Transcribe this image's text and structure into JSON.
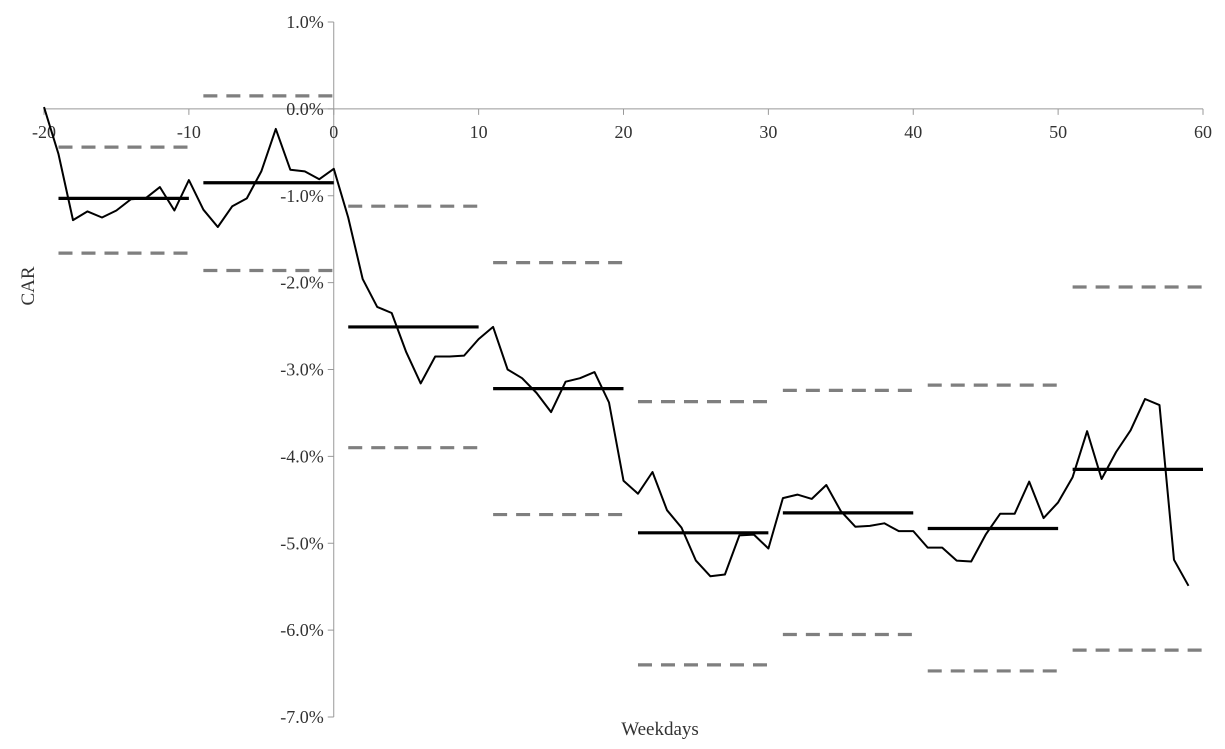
{
  "chart_data": {
    "type": "line",
    "title": "",
    "xlabel": "Weekdays",
    "ylabel": "CAR",
    "xlim": [
      -20,
      60
    ],
    "ylim": [
      -7.0,
      1.0
    ],
    "x_ticks": [
      -20,
      -10,
      0,
      10,
      20,
      30,
      40,
      50,
      60
    ],
    "x_tick_labels": [
      "-20",
      "-10",
      "0",
      "10",
      "20",
      "30",
      "40",
      "50",
      "60"
    ],
    "y_ticks": [
      1.0,
      0.0,
      -1.0,
      -2.0,
      -3.0,
      -4.0,
      -5.0,
      -6.0,
      -7.0
    ],
    "y_tick_labels": [
      "1.0%",
      "0.0%",
      "-1.0%",
      "-2.0%",
      "-3.0%",
      "-4.0%",
      "-5.0%",
      "-6.0%",
      "-7.0%"
    ],
    "grid": false,
    "legend": "none",
    "colors": {
      "car_line": "#000000",
      "mean_line": "#000000",
      "band_line": "#7f7f7f",
      "axis": "#999999"
    },
    "series": [
      {
        "style": "solid-thin",
        "x": [
          -20,
          -19,
          -18,
          -17,
          -16,
          -15,
          -14,
          -13,
          -12,
          -11,
          -10,
          -9,
          -8,
          -7,
          -6,
          -5,
          -4,
          -3,
          -2,
          -1,
          0,
          1,
          2,
          3,
          4,
          5,
          6,
          7,
          8,
          9,
          10,
          11,
          12,
          13,
          14,
          15,
          16,
          17,
          18,
          19,
          20,
          21,
          22,
          23,
          24,
          25,
          26,
          27,
          28,
          29,
          30,
          31,
          32,
          33,
          34,
          35,
          36,
          37,
          38,
          39,
          40,
          41,
          42,
          43,
          44,
          45,
          46,
          47,
          48,
          49,
          50,
          51,
          52,
          53,
          54,
          55,
          56,
          57,
          58,
          59
        ],
        "y": [
          0.02,
          -0.52,
          -1.28,
          -1.18,
          -1.25,
          -1.17,
          -1.04,
          -1.03,
          -0.9,
          -1.17,
          -0.82,
          -1.16,
          -1.36,
          -1.12,
          -1.03,
          -0.72,
          -0.23,
          -0.7,
          -0.72,
          -0.81,
          -0.69,
          -1.25,
          -1.96,
          -2.28,
          -2.35,
          -2.8,
          -3.16,
          -2.85,
          -2.85,
          -2.84,
          -2.65,
          -2.51,
          -3.0,
          -3.1,
          -3.27,
          -3.49,
          -3.14,
          -3.1,
          -3.03,
          -3.38,
          -4.28,
          -4.43,
          -4.18,
          -4.62,
          -4.82,
          -5.2,
          -5.38,
          -5.36,
          -4.91,
          -4.9,
          -5.06,
          -4.48,
          -4.44,
          -4.49,
          -4.33,
          -4.63,
          -4.81,
          -4.8,
          -4.77,
          -4.86,
          -4.86,
          -5.05,
          -5.05,
          -5.2,
          -5.21,
          -4.9,
          -4.66,
          -4.66,
          -4.29,
          -4.71,
          -4.53,
          -4.24,
          -3.71,
          -4.26,
          -3.95,
          -3.7,
          -3.34,
          -3.41,
          -5.19,
          -5.49
        ]
      },
      {
        "style": "solid-thick",
        "segments": [
          {
            "x": [
              -19,
              -10
            ],
            "y": -1.03
          },
          {
            "x": [
              -9,
              0
            ],
            "y": -0.85
          },
          {
            "x": [
              1,
              10
            ],
            "y": -2.51
          },
          {
            "x": [
              11,
              20
            ],
            "y": -3.22
          },
          {
            "x": [
              21,
              30
            ],
            "y": -4.88
          },
          {
            "x": [
              31,
              40
            ],
            "y": -4.65
          },
          {
            "x": [
              41,
              50
            ],
            "y": -4.83
          },
          {
            "x": [
              51,
              60
            ],
            "y": -4.15
          }
        ]
      },
      {
        "style": "dashed-upper",
        "segments": [
          {
            "x": [
              -19,
              -10
            ],
            "y": -0.44
          },
          {
            "x": [
              -9,
              0
            ],
            "y": 0.15
          },
          {
            "x": [
              1,
              10
            ],
            "y": -1.12
          },
          {
            "x": [
              11,
              20
            ],
            "y": -1.77
          },
          {
            "x": [
              21,
              30
            ],
            "y": -3.37
          },
          {
            "x": [
              31,
              40
            ],
            "y": -3.24
          },
          {
            "x": [
              41,
              50
            ],
            "y": -3.18
          },
          {
            "x": [
              51,
              60
            ],
            "y": -2.05
          }
        ]
      },
      {
        "style": "dashed-lower",
        "segments": [
          {
            "x": [
              -19,
              -10
            ],
            "y": -1.66
          },
          {
            "x": [
              -9,
              0
            ],
            "y": -1.86
          },
          {
            "x": [
              1,
              10
            ],
            "y": -3.9
          },
          {
            "x": [
              11,
              20
            ],
            "y": -4.67
          },
          {
            "x": [
              21,
              30
            ],
            "y": -6.4
          },
          {
            "x": [
              31,
              40
            ],
            "y": -6.05
          },
          {
            "x": [
              41,
              50
            ],
            "y": -6.47
          },
          {
            "x": [
              51,
              60
            ],
            "y": -6.23
          }
        ]
      }
    ]
  }
}
